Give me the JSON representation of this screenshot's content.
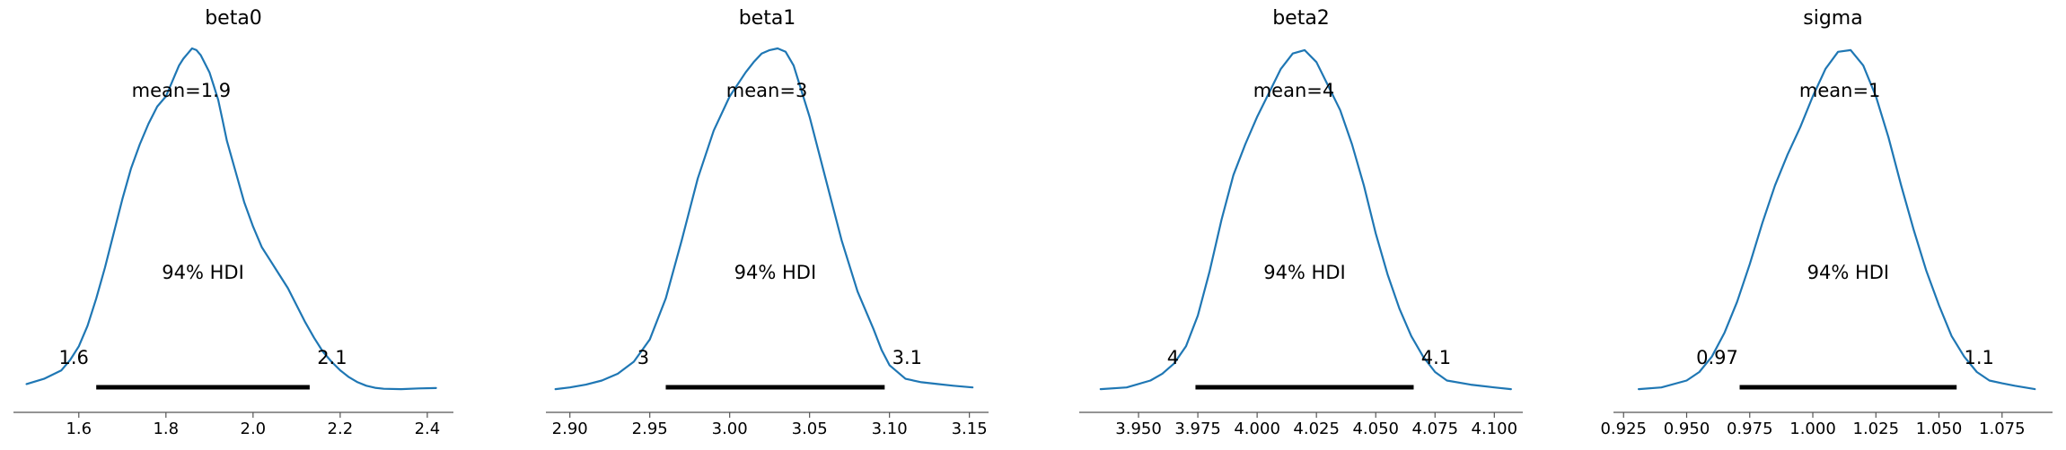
{
  "chart_data": [
    {
      "type": "line",
      "title": "beta0",
      "mean_label": "mean=1.9",
      "hdi_label": "94% HDI",
      "hdi_low_label": "1.6",
      "hdi_high_label": "2.1",
      "hdi": [
        1.64,
        2.13
      ],
      "xlim": [
        1.45,
        2.46
      ],
      "xticks": [
        1.6,
        1.8,
        2.0,
        2.2,
        2.4
      ],
      "xtick_labels": [
        "1.6",
        "1.8",
        "2.0",
        "2.2",
        "2.4"
      ],
      "density": {
        "x": [
          1.48,
          1.52,
          1.56,
          1.58,
          1.6,
          1.62,
          1.64,
          1.66,
          1.68,
          1.7,
          1.72,
          1.74,
          1.76,
          1.78,
          1.8,
          1.81,
          1.82,
          1.83,
          1.84,
          1.85,
          1.86,
          1.87,
          1.88,
          1.89,
          1.9,
          1.91,
          1.92,
          1.93,
          1.94,
          1.96,
          1.98,
          2.0,
          2.02,
          2.04,
          2.06,
          2.08,
          2.1,
          2.12,
          2.14,
          2.16,
          2.18,
          2.2,
          2.22,
          2.24,
          2.26,
          2.28,
          2.3,
          2.34,
          2.38,
          2.42
        ],
        "y": [
          0.02,
          0.035,
          0.06,
          0.09,
          0.13,
          0.19,
          0.27,
          0.36,
          0.46,
          0.56,
          0.65,
          0.72,
          0.78,
          0.83,
          0.86,
          0.89,
          0.92,
          0.95,
          0.97,
          0.985,
          1.0,
          0.995,
          0.98,
          0.955,
          0.93,
          0.89,
          0.85,
          0.79,
          0.73,
          0.64,
          0.55,
          0.48,
          0.42,
          0.38,
          0.34,
          0.3,
          0.25,
          0.2,
          0.155,
          0.115,
          0.085,
          0.06,
          0.04,
          0.025,
          0.015,
          0.009,
          0.006,
          0.005,
          0.007,
          0.008
        ]
      }
    },
    {
      "type": "line",
      "title": "beta1",
      "mean_label": "mean=3",
      "hdi_label": "94% HDI",
      "hdi_low_label": "3",
      "hdi_high_label": "3.1",
      "hdi": [
        2.96,
        3.097
      ],
      "xlim": [
        2.885,
        3.162
      ],
      "xticks": [
        2.9,
        2.95,
        3.0,
        3.05,
        3.1,
        3.15
      ],
      "xtick_labels": [
        "2.90",
        "2.95",
        "3.00",
        "3.05",
        "3.10",
        "3.15"
      ],
      "density": {
        "x": [
          2.891,
          2.9,
          2.91,
          2.92,
          2.93,
          2.94,
          2.95,
          2.96,
          2.97,
          2.98,
          2.99,
          3.0,
          3.01,
          3.015,
          3.02,
          3.025,
          3.03,
          3.035,
          3.04,
          3.05,
          3.06,
          3.07,
          3.08,
          3.09,
          3.095,
          3.1,
          3.11,
          3.12,
          3.13,
          3.14,
          3.152
        ],
        "y": [
          0.005,
          0.01,
          0.018,
          0.03,
          0.05,
          0.085,
          0.15,
          0.27,
          0.44,
          0.62,
          0.76,
          0.86,
          0.93,
          0.96,
          0.985,
          0.995,
          1.0,
          0.99,
          0.95,
          0.8,
          0.62,
          0.44,
          0.29,
          0.18,
          0.12,
          0.075,
          0.035,
          0.025,
          0.02,
          0.015,
          0.01
        ]
      }
    },
    {
      "type": "line",
      "title": "beta2",
      "mean_label": "mean=4",
      "hdi_label": "94% HDI",
      "hdi_low_label": "4",
      "hdi_high_label": "4.1",
      "hdi": [
        3.974,
        4.066
      ],
      "xlim": [
        3.925,
        4.112
      ],
      "xticks": [
        3.95,
        3.975,
        4.0,
        4.025,
        4.05,
        4.075,
        4.1
      ],
      "xtick_labels": [
        "3.950",
        "3.975",
        "4.000",
        "4.025",
        "4.050",
        "4.075",
        "4.100"
      ],
      "density": {
        "x": [
          3.934,
          3.945,
          3.955,
          3.96,
          3.965,
          3.97,
          3.975,
          3.98,
          3.985,
          3.99,
          3.995,
          4.0,
          4.005,
          4.01,
          4.015,
          4.02,
          4.025,
          4.03,
          4.035,
          4.04,
          4.045,
          4.05,
          4.055,
          4.06,
          4.065,
          4.07,
          4.075,
          4.08,
          4.09,
          4.1,
          4.107
        ],
        "y": [
          0.005,
          0.01,
          0.03,
          0.05,
          0.08,
          0.13,
          0.22,
          0.35,
          0.5,
          0.63,
          0.72,
          0.8,
          0.87,
          0.94,
          0.985,
          0.995,
          0.96,
          0.89,
          0.82,
          0.72,
          0.6,
          0.46,
          0.34,
          0.24,
          0.16,
          0.1,
          0.055,
          0.03,
          0.018,
          0.01,
          0.005
        ]
      }
    },
    {
      "type": "line",
      "title": "sigma",
      "mean_label": "mean=1",
      "hdi_label": "94% HDI",
      "hdi_low_label": "0.97",
      "hdi_high_label": "1.1",
      "hdi": [
        0.971,
        1.057
      ],
      "xlim": [
        0.921,
        1.095
      ],
      "xticks": [
        0.925,
        0.95,
        0.975,
        1.0,
        1.025,
        1.05,
        1.075
      ],
      "xtick_labels": [
        "0.925",
        "0.950",
        "0.975",
        "1.000",
        "1.025",
        "1.050",
        "1.075"
      ],
      "density": {
        "x": [
          0.931,
          0.94,
          0.95,
          0.955,
          0.96,
          0.965,
          0.97,
          0.975,
          0.98,
          0.985,
          0.99,
          0.995,
          1.0,
          1.005,
          1.01,
          1.015,
          1.02,
          1.025,
          1.03,
          1.035,
          1.04,
          1.045,
          1.05,
          1.055,
          1.06,
          1.065,
          1.07,
          1.075,
          1.08,
          1.088
        ],
        "y": [
          0.005,
          0.01,
          0.03,
          0.055,
          0.1,
          0.17,
          0.26,
          0.37,
          0.49,
          0.6,
          0.69,
          0.77,
          0.86,
          0.94,
          0.99,
          0.995,
          0.95,
          0.86,
          0.74,
          0.6,
          0.47,
          0.35,
          0.25,
          0.16,
          0.1,
          0.055,
          0.03,
          0.022,
          0.015,
          0.005
        ]
      }
    }
  ],
  "style": {
    "line_color": "#1f77b4",
    "hdi_color": "#000000",
    "axis_color": "#555555"
  }
}
